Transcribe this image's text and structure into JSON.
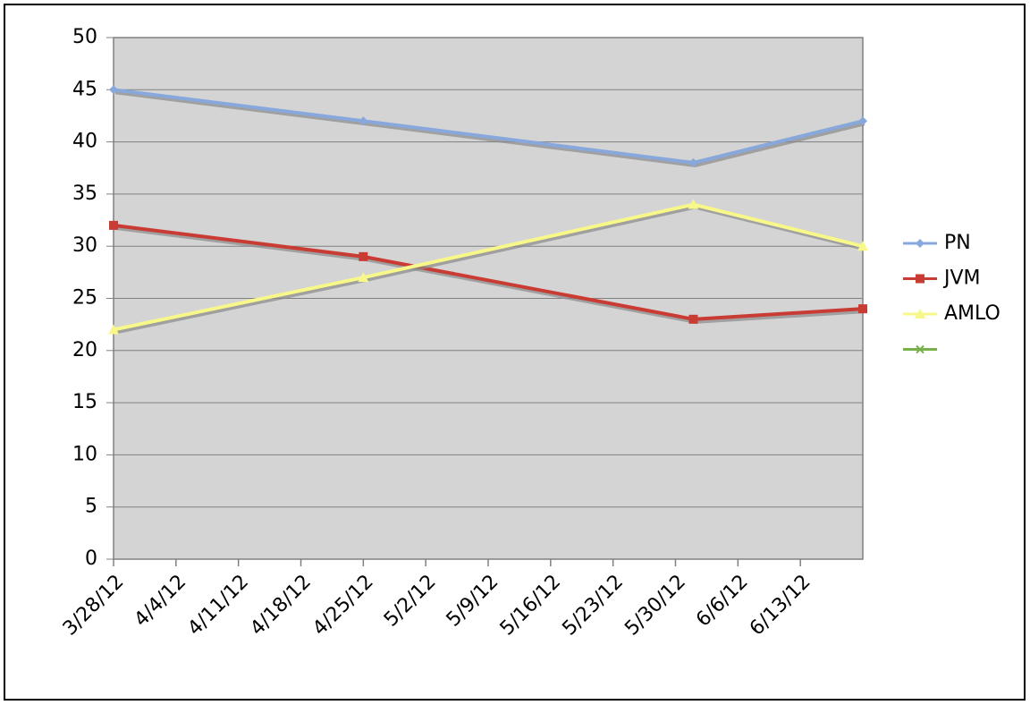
{
  "chart_data": {
    "type": "line",
    "x": [
      "2012-03-28",
      "2012-04-25",
      "2012-06-01",
      "2012-06-20"
    ],
    "series": [
      {
        "name": "PN",
        "color": "#88a8dc",
        "marker": "diamond",
        "values": [
          45,
          42,
          38,
          42
        ]
      },
      {
        "name": "JVM",
        "color": "#c83c34",
        "marker": "square",
        "values": [
          32,
          29,
          23,
          24
        ]
      },
      {
        "name": "AMLO",
        "color": "#f7f78a",
        "marker": "triangle",
        "values": [
          22,
          27,
          34,
          30
        ]
      },
      {
        "color": "#78b04a",
        "marker": "x",
        "values": [
          null,
          null,
          null,
          null
        ]
      }
    ],
    "xlim": [
      "2012-03-28",
      "2012-06-20"
    ],
    "xticks": [
      {
        "value": "2012-03-28",
        "label": "3/28/12"
      },
      {
        "value": "2012-04-04",
        "label": "4/4/12"
      },
      {
        "value": "2012-04-11",
        "label": "4/11/12"
      },
      {
        "value": "2012-04-18",
        "label": "4/18/12"
      },
      {
        "value": "2012-04-25",
        "label": "4/25/12"
      },
      {
        "value": "2012-05-02",
        "label": "5/2/12"
      },
      {
        "value": "2012-05-09",
        "label": "5/9/12"
      },
      {
        "value": "2012-05-16",
        "label": "5/16/12"
      },
      {
        "value": "2012-05-23",
        "label": "5/23/12"
      },
      {
        "value": "2012-05-30",
        "label": "5/30/12"
      },
      {
        "value": "2012-06-06",
        "label": "6/6/12"
      },
      {
        "value": "2012-06-13",
        "label": "6/13/12"
      }
    ],
    "ylim": [
      0,
      50
    ],
    "yticks": [
      0,
      5,
      10,
      15,
      20,
      25,
      30,
      35,
      40,
      45,
      50
    ],
    "grid": true,
    "legend": "right",
    "plot_background": "#d4d4d4"
  }
}
